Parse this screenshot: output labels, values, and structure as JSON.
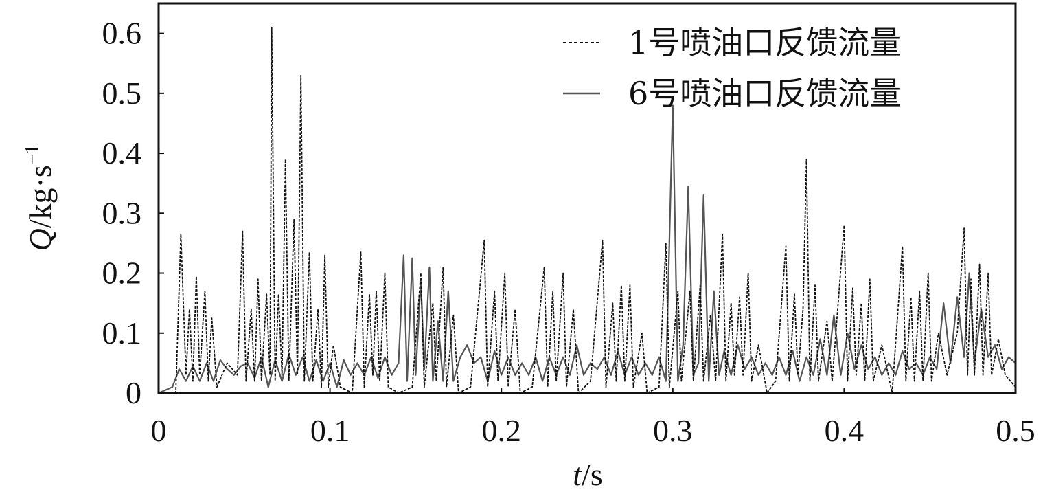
{
  "chart_data": {
    "type": "line",
    "title": "",
    "xlabel": {
      "var": "t",
      "unit": "/s"
    },
    "ylabel": {
      "var": "Q",
      "unit": "/kg·s",
      "exp": "−1"
    },
    "xlim": [
      0,
      0.5
    ],
    "ylim": [
      0,
      0.65
    ],
    "xticks": [
      0,
      0.1,
      0.2,
      0.3,
      0.4,
      0.5
    ],
    "xtick_labels": [
      "0",
      "0.1",
      "0.2",
      "0.3",
      "0.4",
      "0.5"
    ],
    "yticks": [
      0,
      0.1,
      0.2,
      0.3,
      0.4,
      0.5,
      0.6
    ],
    "ytick_labels": [
      "0",
      "0.1",
      "0.2",
      "0.3",
      "0.4",
      "0.5",
      "0.6"
    ],
    "grid": false,
    "legend_position": "top-right",
    "series": [
      {
        "name": "1号喷油口反馈流量",
        "style": "dashed",
        "color": "#111111",
        "points": [
          [
            0.0,
            0.0
          ],
          [
            0.01,
            0.0
          ],
          [
            0.013,
            0.265
          ],
          [
            0.016,
            0.03
          ],
          [
            0.018,
            0.14
          ],
          [
            0.02,
            0.02
          ],
          [
            0.022,
            0.195
          ],
          [
            0.024,
            0.03
          ],
          [
            0.027,
            0.17
          ],
          [
            0.029,
            0.02
          ],
          [
            0.031,
            0.125
          ],
          [
            0.034,
            0.01
          ],
          [
            0.04,
            0.05
          ],
          [
            0.046,
            0.03
          ],
          [
            0.049,
            0.27
          ],
          [
            0.051,
            0.02
          ],
          [
            0.054,
            0.14
          ],
          [
            0.056,
            0.02
          ],
          [
            0.058,
            0.19
          ],
          [
            0.06,
            0.02
          ],
          [
            0.063,
            0.165
          ],
          [
            0.065,
            0.03
          ],
          [
            0.066,
            0.61
          ],
          [
            0.068,
            0.02
          ],
          [
            0.07,
            0.165
          ],
          [
            0.072,
            0.03
          ],
          [
            0.074,
            0.39
          ],
          [
            0.076,
            0.02
          ],
          [
            0.079,
            0.29
          ],
          [
            0.081,
            0.03
          ],
          [
            0.083,
            0.53
          ],
          [
            0.085,
            0.02
          ],
          [
            0.088,
            0.235
          ],
          [
            0.09,
            0.02
          ],
          [
            0.093,
            0.14
          ],
          [
            0.095,
            0.01
          ],
          [
            0.097,
            0.23
          ],
          [
            0.099,
            0.01
          ],
          [
            0.102,
            0.08
          ],
          [
            0.106,
            0.01
          ],
          [
            0.113,
            0.0
          ],
          [
            0.118,
            0.235
          ],
          [
            0.12,
            0.01
          ],
          [
            0.123,
            0.165
          ],
          [
            0.125,
            0.03
          ],
          [
            0.127,
            0.17
          ],
          [
            0.129,
            0.02
          ],
          [
            0.132,
            0.2
          ],
          [
            0.134,
            0.01
          ],
          [
            0.14,
            0.0
          ],
          [
            0.148,
            0.01
          ],
          [
            0.153,
            0.2
          ],
          [
            0.155,
            0.01
          ],
          [
            0.16,
            0.15
          ],
          [
            0.162,
            0.02
          ],
          [
            0.166,
            0.21
          ],
          [
            0.168,
            0.01
          ],
          [
            0.172,
            0.13
          ],
          [
            0.175,
            0.0
          ],
          [
            0.182,
            0.01
          ],
          [
            0.19,
            0.255
          ],
          [
            0.192,
            0.01
          ],
          [
            0.196,
            0.17
          ],
          [
            0.198,
            0.02
          ],
          [
            0.202,
            0.2
          ],
          [
            0.204,
            0.01
          ],
          [
            0.208,
            0.14
          ],
          [
            0.211,
            0.0
          ],
          [
            0.218,
            0.01
          ],
          [
            0.225,
            0.21
          ],
          [
            0.227,
            0.01
          ],
          [
            0.23,
            0.17
          ],
          [
            0.232,
            0.02
          ],
          [
            0.236,
            0.2
          ],
          [
            0.238,
            0.01
          ],
          [
            0.242,
            0.14
          ],
          [
            0.245,
            0.0
          ],
          [
            0.252,
            0.02
          ],
          [
            0.259,
            0.255
          ],
          [
            0.261,
            0.01
          ],
          [
            0.265,
            0.15
          ],
          [
            0.267,
            0.02
          ],
          [
            0.27,
            0.18
          ],
          [
            0.272,
            0.02
          ],
          [
            0.275,
            0.18
          ],
          [
            0.277,
            0.01
          ],
          [
            0.282,
            0.1
          ],
          [
            0.285,
            0.0
          ],
          [
            0.292,
            0.01
          ],
          [
            0.296,
            0.25
          ],
          [
            0.298,
            0.01
          ],
          [
            0.303,
            0.17
          ],
          [
            0.305,
            0.02
          ],
          [
            0.31,
            0.17
          ],
          [
            0.312,
            0.02
          ],
          [
            0.316,
            0.18
          ],
          [
            0.318,
            0.02
          ],
          [
            0.322,
            0.13
          ],
          [
            0.325,
            0.02
          ],
          [
            0.329,
            0.265
          ],
          [
            0.331,
            0.02
          ],
          [
            0.334,
            0.15
          ],
          [
            0.336,
            0.03
          ],
          [
            0.339,
            0.16
          ],
          [
            0.341,
            0.03
          ],
          [
            0.344,
            0.2
          ],
          [
            0.346,
            0.02
          ],
          [
            0.35,
            0.08
          ],
          [
            0.355,
            0.0
          ],
          [
            0.36,
            0.02
          ],
          [
            0.366,
            0.245
          ],
          [
            0.368,
            0.02
          ],
          [
            0.371,
            0.165
          ],
          [
            0.373,
            0.03
          ],
          [
            0.376,
            0.14
          ],
          [
            0.378,
            0.39
          ],
          [
            0.38,
            0.02
          ],
          [
            0.383,
            0.18
          ],
          [
            0.385,
            0.02
          ],
          [
            0.39,
            0.12
          ],
          [
            0.393,
            0.02
          ],
          [
            0.4,
            0.28
          ],
          [
            0.402,
            0.02
          ],
          [
            0.405,
            0.175
          ],
          [
            0.407,
            0.03
          ],
          [
            0.41,
            0.15
          ],
          [
            0.412,
            0.02
          ],
          [
            0.415,
            0.19
          ],
          [
            0.417,
            0.02
          ],
          [
            0.422,
            0.08
          ],
          [
            0.428,
            0.0
          ],
          [
            0.434,
            0.245
          ],
          [
            0.436,
            0.02
          ],
          [
            0.439,
            0.16
          ],
          [
            0.441,
            0.02
          ],
          [
            0.444,
            0.17
          ],
          [
            0.446,
            0.02
          ],
          [
            0.449,
            0.2
          ],
          [
            0.451,
            0.02
          ],
          [
            0.455,
            0.1
          ],
          [
            0.46,
            0.03
          ],
          [
            0.466,
            0.1
          ],
          [
            0.47,
            0.275
          ],
          [
            0.472,
            0.03
          ],
          [
            0.474,
            0.19
          ],
          [
            0.476,
            0.03
          ],
          [
            0.479,
            0.215
          ],
          [
            0.481,
            0.03
          ],
          [
            0.484,
            0.2
          ],
          [
            0.486,
            0.03
          ],
          [
            0.49,
            0.09
          ],
          [
            0.494,
            0.03
          ],
          [
            0.5,
            0.01
          ]
        ]
      },
      {
        "name": "6号喷油口反馈流量",
        "style": "solid",
        "color": "#555555",
        "points": [
          [
            0.0,
            0.0
          ],
          [
            0.008,
            0.01
          ],
          [
            0.012,
            0.04
          ],
          [
            0.016,
            0.02
          ],
          [
            0.02,
            0.045
          ],
          [
            0.024,
            0.02
          ],
          [
            0.028,
            0.05
          ],
          [
            0.032,
            0.02
          ],
          [
            0.036,
            0.055
          ],
          [
            0.04,
            0.04
          ],
          [
            0.044,
            0.03
          ],
          [
            0.048,
            0.045
          ],
          [
            0.052,
            0.05
          ],
          [
            0.056,
            0.025
          ],
          [
            0.06,
            0.06
          ],
          [
            0.064,
            0.01
          ],
          [
            0.068,
            0.055
          ],
          [
            0.072,
            0.02
          ],
          [
            0.076,
            0.065
          ],
          [
            0.08,
            0.03
          ],
          [
            0.084,
            0.06
          ],
          [
            0.088,
            0.02
          ],
          [
            0.092,
            0.055
          ],
          [
            0.096,
            0.02
          ],
          [
            0.1,
            0.05
          ],
          [
            0.104,
            0.01
          ],
          [
            0.108,
            0.055
          ],
          [
            0.112,
            0.03
          ],
          [
            0.116,
            0.05
          ],
          [
            0.12,
            0.03
          ],
          [
            0.124,
            0.06
          ],
          [
            0.128,
            0.025
          ],
          [
            0.132,
            0.06
          ],
          [
            0.136,
            0.03
          ],
          [
            0.14,
            0.05
          ],
          [
            0.143,
            0.23
          ],
          [
            0.145,
            0.02
          ],
          [
            0.148,
            0.225
          ],
          [
            0.15,
            0.03
          ],
          [
            0.153,
            0.19
          ],
          [
            0.155,
            0.04
          ],
          [
            0.158,
            0.21
          ],
          [
            0.16,
            0.02
          ],
          [
            0.163,
            0.12
          ],
          [
            0.166,
            0.02
          ],
          [
            0.169,
            0.17
          ],
          [
            0.172,
            0.02
          ],
          [
            0.176,
            0.06
          ],
          [
            0.18,
            0.08
          ],
          [
            0.184,
            0.05
          ],
          [
            0.188,
            0.06
          ],
          [
            0.192,
            0.02
          ],
          [
            0.196,
            0.07
          ],
          [
            0.2,
            0.03
          ],
          [
            0.204,
            0.06
          ],
          [
            0.208,
            0.03
          ],
          [
            0.212,
            0.05
          ],
          [
            0.216,
            0.03
          ],
          [
            0.22,
            0.06
          ],
          [
            0.224,
            0.02
          ],
          [
            0.228,
            0.06
          ],
          [
            0.232,
            0.03
          ],
          [
            0.236,
            0.06
          ],
          [
            0.24,
            0.03
          ],
          [
            0.244,
            0.08
          ],
          [
            0.248,
            0.03
          ],
          [
            0.252,
            0.05
          ],
          [
            0.256,
            0.04
          ],
          [
            0.26,
            0.06
          ],
          [
            0.264,
            0.03
          ],
          [
            0.268,
            0.07
          ],
          [
            0.272,
            0.03
          ],
          [
            0.276,
            0.06
          ],
          [
            0.28,
            0.03
          ],
          [
            0.284,
            0.05
          ],
          [
            0.288,
            0.03
          ],
          [
            0.292,
            0.06
          ],
          [
            0.296,
            0.02
          ],
          [
            0.3,
            0.48
          ],
          [
            0.303,
            0.02
          ],
          [
            0.306,
            0.08
          ],
          [
            0.309,
            0.345
          ],
          [
            0.312,
            0.03
          ],
          [
            0.315,
            0.05
          ],
          [
            0.318,
            0.33
          ],
          [
            0.321,
            0.02
          ],
          [
            0.324,
            0.17
          ],
          [
            0.327,
            0.03
          ],
          [
            0.33,
            0.07
          ],
          [
            0.334,
            0.03
          ],
          [
            0.338,
            0.08
          ],
          [
            0.342,
            0.04
          ],
          [
            0.346,
            0.06
          ],
          [
            0.35,
            0.03
          ],
          [
            0.354,
            0.05
          ],
          [
            0.358,
            0.03
          ],
          [
            0.362,
            0.06
          ],
          [
            0.366,
            0.03
          ],
          [
            0.37,
            0.07
          ],
          [
            0.374,
            0.02
          ],
          [
            0.378,
            0.06
          ],
          [
            0.382,
            0.03
          ],
          [
            0.386,
            0.09
          ],
          [
            0.39,
            0.03
          ],
          [
            0.394,
            0.13
          ],
          [
            0.398,
            0.03
          ],
          [
            0.402,
            0.1
          ],
          [
            0.406,
            0.04
          ],
          [
            0.41,
            0.08
          ],
          [
            0.414,
            0.04
          ],
          [
            0.418,
            0.06
          ],
          [
            0.422,
            0.03
          ],
          [
            0.426,
            0.05
          ],
          [
            0.43,
            0.03
          ],
          [
            0.434,
            0.07
          ],
          [
            0.438,
            0.04
          ],
          [
            0.442,
            0.05
          ],
          [
            0.446,
            0.03
          ],
          [
            0.45,
            0.06
          ],
          [
            0.454,
            0.04
          ],
          [
            0.458,
            0.15
          ],
          [
            0.462,
            0.05
          ],
          [
            0.466,
            0.16
          ],
          [
            0.47,
            0.06
          ],
          [
            0.473,
            0.2
          ],
          [
            0.476,
            0.05
          ],
          [
            0.48,
            0.14
          ],
          [
            0.484,
            0.06
          ],
          [
            0.488,
            0.08
          ],
          [
            0.492,
            0.04
          ],
          [
            0.496,
            0.06
          ],
          [
            0.5,
            0.05
          ]
        ]
      }
    ]
  }
}
